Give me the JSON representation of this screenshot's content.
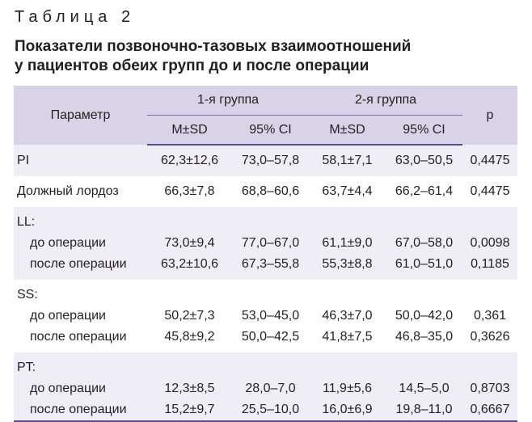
{
  "caption": "Таблица 2",
  "title_line1": "Показатели позвоночно-тазовых взаимоотношений",
  "title_line2": "у пациентов обеих групп до и после операции",
  "header": {
    "param": "Параметр",
    "group1": "1-я группа",
    "group2": "2-я группа",
    "p": "p",
    "msd1": "M±SD",
    "ci1": "95% CI",
    "msd2": "M±SD",
    "ci2": "95% CI"
  },
  "rows": {
    "pi": {
      "label": "PI",
      "m1": "62,3±12,6",
      "ci1": "73,0–57,8",
      "m2": "58,1±7,1",
      "ci2": "63,0–50,5",
      "p": "0,4475"
    },
    "lordosis": {
      "label": "Должный лордоз",
      "m1": "66,3±7,8",
      "ci1": "68,8–60,6",
      "m2": "63,7±4,4",
      "ci2": "66,2–61,4",
      "p": "0,4475"
    },
    "ll": {
      "label": "LL:",
      "before": {
        "label": "до операции",
        "m1": "73,0±9,4",
        "ci1": "77,0–67,0",
        "m2": "61,1±9,0",
        "ci2": "67,0–58,0",
        "p": "0,0098"
      },
      "after": {
        "label": "после операции",
        "m1": "63,2±10,6",
        "ci1": "67,3–55,8",
        "m2": "55,3±8,8",
        "ci2": "61,0–51,0",
        "p": "0,1185"
      }
    },
    "ss": {
      "label": "SS:",
      "before": {
        "label": "до операции",
        "m1": "50,2±7,3",
        "ci1": "53,0–45,0",
        "m2": "46,3±7,0",
        "ci2": "50,0–42,0",
        "p": "0,361"
      },
      "after": {
        "label": "после операции",
        "m1": "45,8±9,2",
        "ci1": "50,0–42,5",
        "m2": "41,8±7,5",
        "ci2": "46,8–35,0",
        "p": "0,3626"
      }
    },
    "pt": {
      "label": "PT:",
      "before": {
        "label": "до операции",
        "m1": "12,3±8,5",
        "ci1": "28,0–7,0",
        "m2": "11,9±5,6",
        "ci2": "14,5–5,0",
        "p": "0,8703"
      },
      "after": {
        "label": "после операции",
        "m1": "15,2±9,7",
        "ci1": "25,5–10,0",
        "m2": "16,0±6,9",
        "ci2": "19,8–11,0",
        "p": "0,6667"
      }
    }
  },
  "colors": {
    "header_bg": "#d8d3e6",
    "band_bg": "#efedf6",
    "rule": "#5c4a8c"
  }
}
